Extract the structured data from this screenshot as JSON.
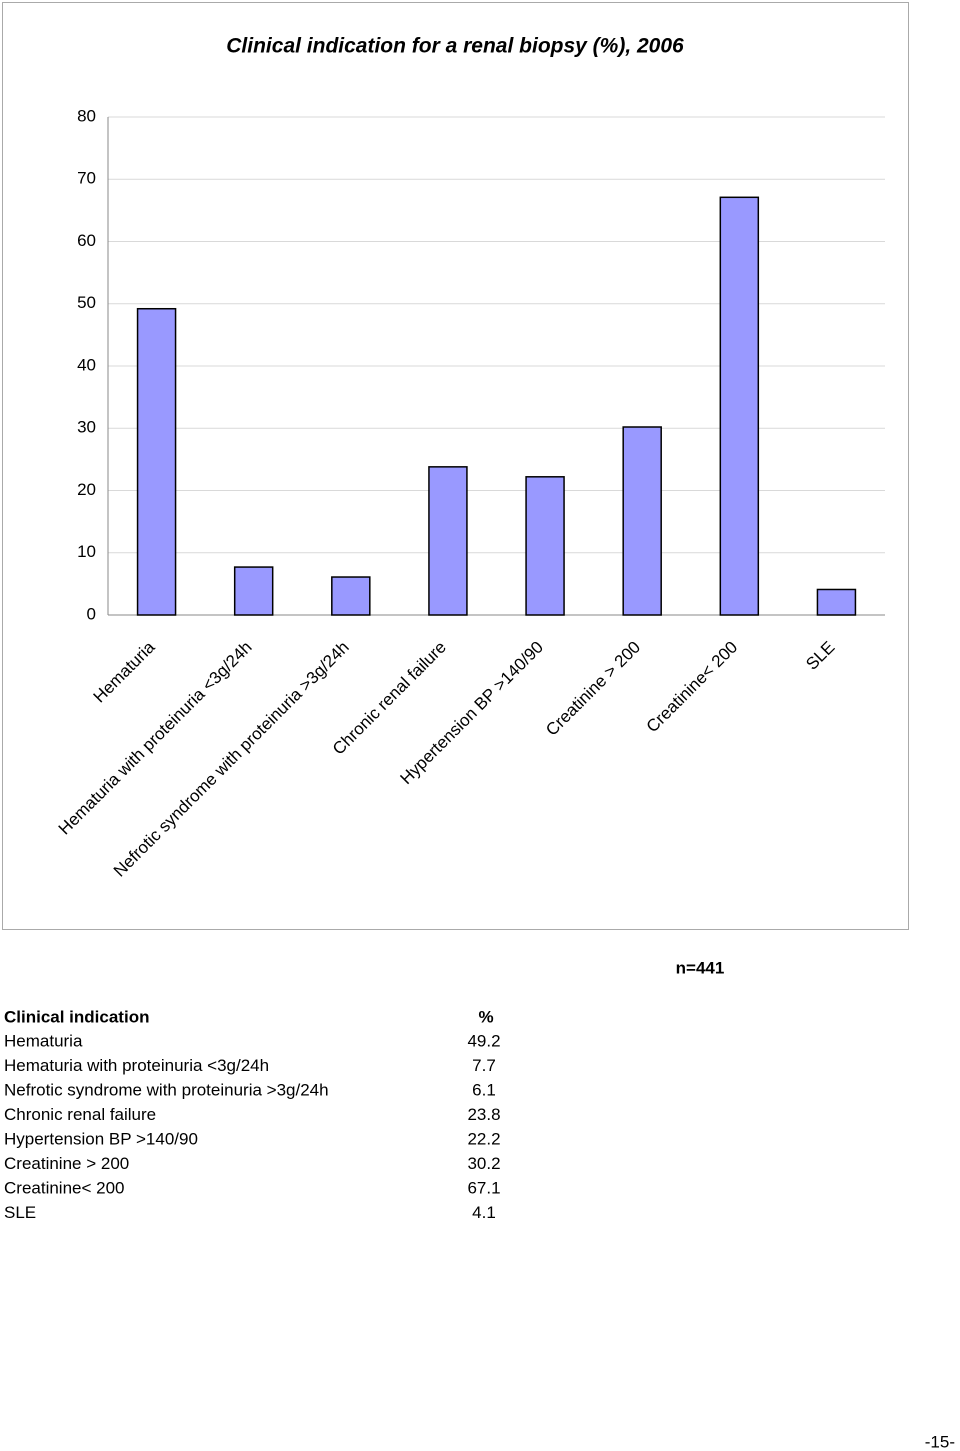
{
  "chart_data": {
    "type": "bar",
    "title": "Clinical indication for a renal biopsy (%), 2006",
    "categories": [
      "Hematuria",
      "Hematuria with proteinuria <3g/24h",
      "Nefrotic syndrome with proteinuria >3g/24h",
      "Chronic renal failure",
      "Hypertension BP >140/90",
      "Creatinine > 200",
      "Creatinine< 200",
      "SLE"
    ],
    "values": [
      49.2,
      7.7,
      6.1,
      23.8,
      22.2,
      30.2,
      67.1,
      4.1
    ],
    "color": "#9999ff",
    "ylim": [
      0,
      80
    ],
    "yticks": [
      0,
      10,
      20,
      30,
      40,
      50,
      60,
      70,
      80
    ],
    "grid": true
  },
  "note": "n=441",
  "table": {
    "header": [
      "Clinical indication",
      "%"
    ]
  },
  "page_number": "-15-"
}
